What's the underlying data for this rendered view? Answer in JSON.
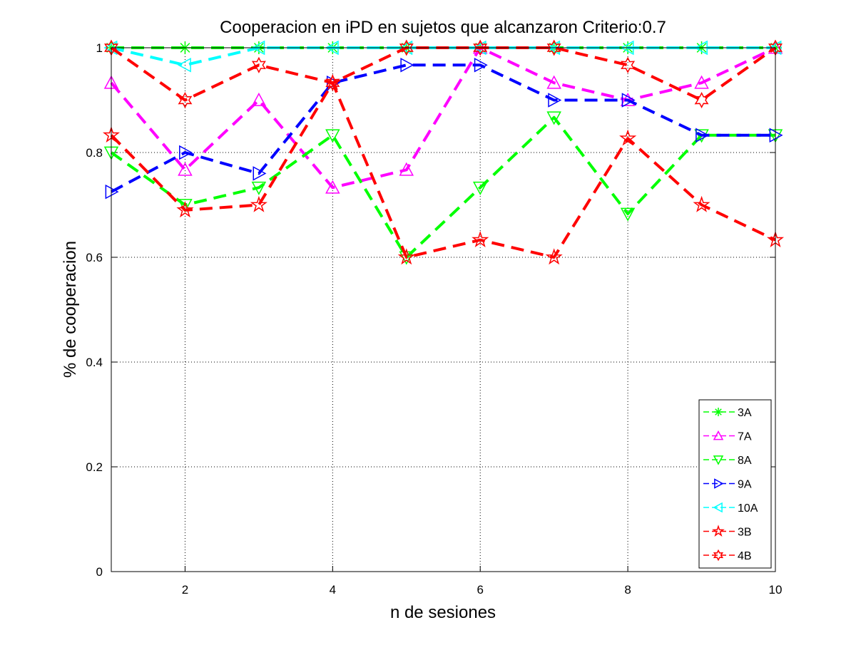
{
  "chart_data": {
    "type": "line",
    "title": "Cooperacion en iPD en sujetos que alcanzaron Criterio:0.7",
    "xlabel": "n de sesiones",
    "ylabel": "% de cooperacion",
    "xlim": [
      1,
      10
    ],
    "ylim": [
      0,
      1
    ],
    "xticks": [
      2,
      4,
      6,
      8,
      10
    ],
    "yticks": [
      0,
      0.2,
      0.4,
      0.6,
      0.8,
      1
    ],
    "xtick_labels": [
      "2",
      "4",
      "6",
      "8",
      "10"
    ],
    "ytick_labels": [
      "0",
      "0.2",
      "0.4",
      "0.6",
      "0.8",
      "1"
    ],
    "grid": true,
    "legend_position": "bottom-right",
    "x": [
      1,
      2,
      3,
      4,
      5,
      6,
      7,
      8,
      9,
      10
    ],
    "series": [
      {
        "name": "3A",
        "color": "#00ff00",
        "marker": "asterisk",
        "values": [
          1,
          1,
          1,
          1,
          1,
          1,
          1,
          1,
          1,
          1
        ]
      },
      {
        "name": "7A",
        "color": "#ff00ff",
        "marker": "triangle-up",
        "values": [
          0.933,
          0.767,
          0.9,
          0.733,
          0.767,
          1,
          0.933,
          0.9,
          0.933,
          1
        ]
      },
      {
        "name": "8A",
        "color": "#00ff00",
        "marker": "triangle-down",
        "values": [
          0.8,
          0.7,
          0.733,
          0.833,
          0.6,
          0.733,
          0.867,
          0.683,
          0.833,
          0.833
        ]
      },
      {
        "name": "9A",
        "color": "#0000ff",
        "marker": "triangle-right",
        "values": [
          0.725,
          0.8,
          0.76,
          0.933,
          0.967,
          0.967,
          0.9,
          0.9,
          0.833,
          0.833
        ]
      },
      {
        "name": "10A",
        "color": "#00ffff",
        "marker": "triangle-left",
        "values": [
          1,
          0.967,
          1,
          1,
          1,
          1,
          1,
          1,
          1,
          1
        ]
      },
      {
        "name": "3B",
        "color": "#ff0000",
        "marker": "pentagram",
        "values": [
          0.833,
          0.69,
          0.7,
          0.933,
          0.6,
          0.633,
          0.6,
          0.827,
          0.7,
          0.633
        ]
      },
      {
        "name": "4B",
        "color": "#ff0000",
        "marker": "hexagram",
        "values": [
          1,
          0.9,
          0.967,
          0.933,
          1,
          1,
          1,
          0.967,
          0.9,
          1
        ]
      }
    ]
  }
}
